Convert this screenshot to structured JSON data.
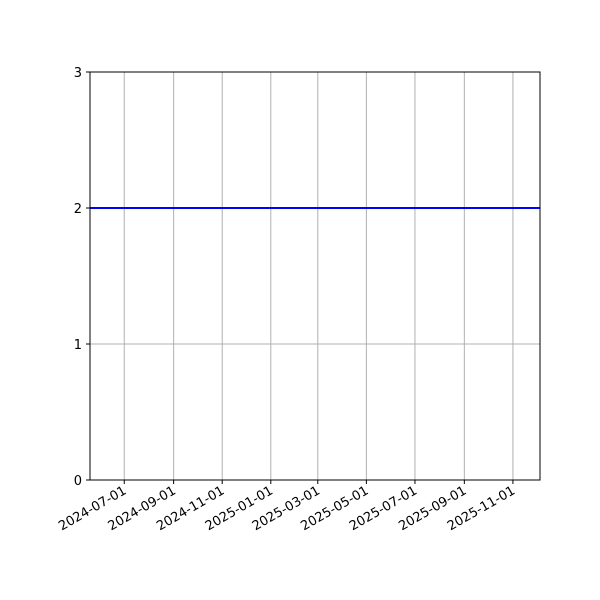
{
  "chart_data": {
    "type": "line",
    "title": "",
    "xlabel": "",
    "ylabel": "",
    "x_axis_type": "date",
    "xlim": [
      "2024-05-19",
      "2025-12-05"
    ],
    "ylim": [
      0,
      3
    ],
    "grid": true,
    "x_ticks": [
      "2024-07-01",
      "2024-09-01",
      "2024-11-01",
      "2025-01-01",
      "2025-03-01",
      "2025-05-01",
      "2025-07-01",
      "2025-09-01",
      "2025-11-01"
    ],
    "y_ticks": [
      "0",
      "1",
      "2",
      "3"
    ],
    "series": [
      {
        "color": "#0000ff",
        "x": [
          "2024-05-19",
          "2025-12-05"
        ],
        "y": [
          2,
          2
        ]
      }
    ],
    "colors": {
      "grid": "#b0b0b0",
      "axes": "#000000"
    }
  }
}
